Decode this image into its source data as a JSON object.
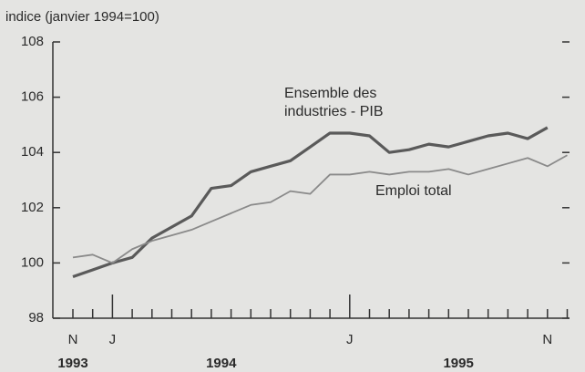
{
  "chart_data": {
    "type": "line",
    "y_axis_label": "indice (janvier 1994=100)",
    "categories": [
      "N",
      null,
      "J",
      null,
      null,
      null,
      null,
      null,
      null,
      null,
      null,
      null,
      null,
      null,
      "J",
      null,
      null,
      null,
      null,
      null,
      null,
      null,
      null,
      null,
      "N",
      null
    ],
    "year_labels": [
      "1993",
      "1994",
      "1995"
    ],
    "series": [
      {
        "name": "Ensemble des industries - PIB",
        "color": "#5a5a5a",
        "values": [
          99.5,
          99.75,
          100.0,
          100.2,
          100.9,
          101.3,
          101.7,
          102.7,
          102.8,
          103.3,
          103.5,
          103.7,
          104.2,
          104.7,
          104.7,
          104.6,
          104.0,
          104.1,
          104.3,
          104.2,
          104.4,
          104.6,
          104.7,
          104.5,
          104.9,
          null
        ]
      },
      {
        "name": "Emploi total",
        "color": "#8a8a8a",
        "values": [
          100.2,
          100.3,
          100.0,
          100.5,
          100.8,
          101.0,
          101.2,
          101.5,
          101.8,
          102.1,
          102.2,
          102.6,
          102.5,
          103.2,
          103.2,
          103.3,
          103.2,
          103.3,
          103.3,
          103.4,
          103.2,
          103.4,
          103.6,
          103.8,
          103.5,
          103.9
        ]
      }
    ],
    "ylim": [
      98,
      108
    ],
    "yticks": [
      98,
      100,
      102,
      104,
      106,
      108
    ]
  }
}
